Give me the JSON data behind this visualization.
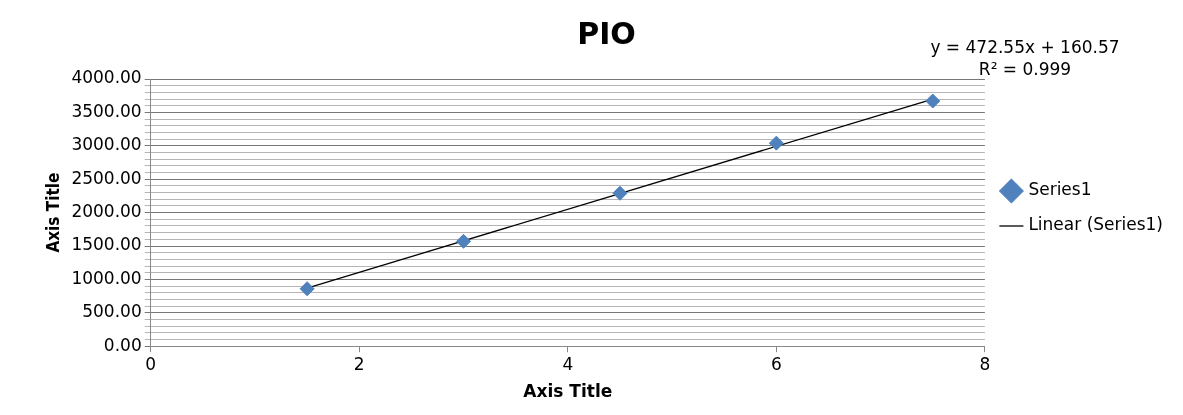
{
  "chart_data": {
    "type": "scatter",
    "title": "PIO",
    "xlabel": "Axis Title",
    "ylabel": "Axis Title",
    "annotations": [
      "y = 472.55x + 160.57\nR² = 0.999"
    ],
    "series": [
      {
        "name": "Series1",
        "color": "#4f81bd",
        "marker": "diamond",
        "x": [
          1.5,
          3,
          4.5,
          6,
          7.5
        ],
        "values": [
          860,
          1570,
          2290,
          3040,
          3670
        ]
      },
      {
        "name": "Linear (Series1)",
        "type": "line",
        "color": "#000000",
        "marker": "none",
        "line_style": "solid",
        "x": [
          1.5,
          7.5
        ],
        "values": [
          870,
          3700
        ]
      }
    ],
    "xlim": [
      0,
      8
    ],
    "xticks": [
      0,
      2,
      4,
      6,
      8
    ],
    "ylim": [
      0,
      4000
    ],
    "yticks": [
      {
        "value": 0,
        "label": "0.00"
      },
      {
        "value": 100,
        "label": null
      },
      {
        "value": 200,
        "label": null
      },
      {
        "value": 300,
        "label": null
      },
      {
        "value": 400,
        "label": null
      },
      {
        "value": 500,
        "label": "500.00"
      },
      {
        "value": 600,
        "label": null
      },
      {
        "value": 700,
        "label": null
      },
      {
        "value": 800,
        "label": null
      },
      {
        "value": 900,
        "label": null
      },
      {
        "value": 1000,
        "label": "1000.00"
      },
      {
        "value": 1100,
        "label": null
      },
      {
        "value": 1200,
        "label": null
      },
      {
        "value": 1300,
        "label": null
      },
      {
        "value": 1400,
        "label": null
      },
      {
        "value": 1500,
        "label": "1500.00"
      },
      {
        "value": 1600,
        "label": null
      },
      {
        "value": 1700,
        "label": null
      },
      {
        "value": 1800,
        "label": null
      },
      {
        "value": 1900,
        "label": null
      },
      {
        "value": 2000,
        "label": "2000.00"
      },
      {
        "value": 2100,
        "label": null
      },
      {
        "value": 2200,
        "label": null
      },
      {
        "value": 2300,
        "label": null
      },
      {
        "value": 2400,
        "label": null
      },
      {
        "value": 2500,
        "label": "2500.00"
      },
      {
        "value": 2600,
        "label": null
      },
      {
        "value": 2700,
        "label": null
      },
      {
        "value": 2800,
        "label": null
      },
      {
        "value": 2900,
        "label": null
      },
      {
        "value": 3000,
        "label": "3000.00"
      },
      {
        "value": 3100,
        "label": null
      },
      {
        "value": 3200,
        "label": null
      },
      {
        "value": 3300,
        "label": null
      },
      {
        "value": 3400,
        "label": null
      },
      {
        "value": 3500,
        "label": "3500.00"
      },
      {
        "value": 3600,
        "label": null
      },
      {
        "value": 3700,
        "label": null
      },
      {
        "value": 3800,
        "label": null
      },
      {
        "value": 3900,
        "label": null
      },
      {
        "value": 4000,
        "label": "4000.00"
      }
    ],
    "grid": "y",
    "legend": "right"
  }
}
